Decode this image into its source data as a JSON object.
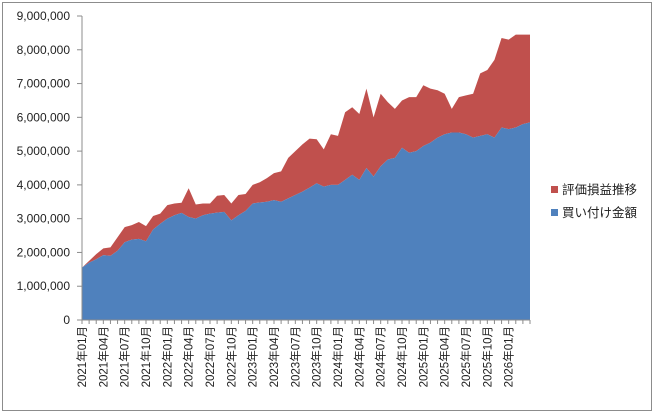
{
  "chart_data": {
    "type": "area",
    "stacked": true,
    "title": "",
    "xlabel": "",
    "ylabel": "",
    "ylim": [
      0,
      9000000
    ],
    "y_ticks": [
      "0",
      "1,000,000",
      "2,000,000",
      "3,000,000",
      "4,000,000",
      "5,000,000",
      "6,000,000",
      "7,000,000",
      "8,000,000",
      "9,000,000"
    ],
    "x_tick_labels": [
      "2021年01月",
      "2021年04月",
      "2021年07月",
      "2021年10月",
      "2022年01月",
      "2022年04月",
      "2022年07月",
      "2022年10月",
      "2023年01月",
      "2023年04月",
      "2023年07月",
      "2023年10月",
      "2024年01月",
      "2024年04月",
      "2024年07月",
      "2024年10月",
      "2025年01月",
      "2025年04月",
      "2025年07月",
      "2025年10月",
      "2026年01月"
    ],
    "x_tick_every": 3,
    "grid": false,
    "legend": "right",
    "series": [
      {
        "name": "買い付け金額",
        "color": "#4f81bd",
        "values": [
          1550000,
          1700000,
          1800000,
          1920000,
          1900000,
          2050000,
          2300000,
          2380000,
          2400000,
          2330000,
          2680000,
          2850000,
          3000000,
          3100000,
          3170000,
          3050000,
          3000000,
          3100000,
          3150000,
          3180000,
          3200000,
          2950000,
          3100000,
          3230000,
          3450000,
          3480000,
          3500000,
          3550000,
          3500000,
          3600000,
          3700000,
          3800000,
          3920000,
          4050000,
          3950000,
          4000000,
          4000000,
          4150000,
          4300000,
          4150000,
          4500000,
          4250000,
          4550000,
          4750000,
          4800000,
          5100000,
          4950000,
          5000000,
          5150000,
          5250000,
          5400000,
          5500000,
          5550000,
          5550000,
          5500000,
          5400000,
          5450000,
          5500000,
          5400000,
          5700000,
          5650000,
          5700000,
          5800000,
          5850000
        ]
      },
      {
        "name": "評価損益推移",
        "color": "#c0504d",
        "values": [
          0,
          50000,
          150000,
          200000,
          250000,
          400000,
          450000,
          430000,
          500000,
          450000,
          400000,
          300000,
          400000,
          350000,
          300000,
          850000,
          420000,
          350000,
          300000,
          500000,
          500000,
          500000,
          600000,
          500000,
          550000,
          600000,
          700000,
          800000,
          900000,
          1200000,
          1300000,
          1400000,
          1450000,
          1300000,
          1100000,
          1500000,
          1450000,
          2000000,
          2000000,
          1950000,
          2350000,
          1750000,
          2150000,
          1700000,
          1450000,
          1400000,
          1650000,
          1600000,
          1800000,
          1600000,
          1400000,
          1200000,
          700000,
          1050000,
          1150000,
          1300000,
          1850000,
          1900000,
          2300000,
          2650000,
          2650000,
          2750000,
          2650000,
          2600000
        ]
      }
    ]
  }
}
